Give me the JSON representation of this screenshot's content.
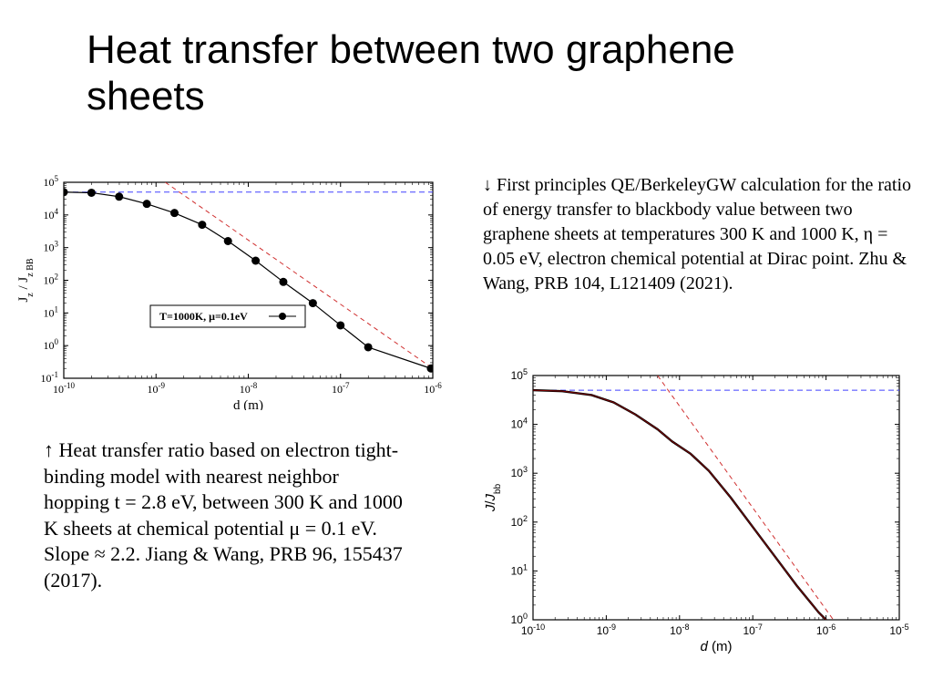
{
  "title": "Heat transfer between two graphene sheets",
  "caption_left": "↑ Heat transfer ratio based on electron tight-binding model with nearest neighbor hopping t = 2.8 eV, between 300 K and 1000 K sheets at chemical potential μ = 0.1 eV. Slope ≈ 2.2. Jiang & Wang, PRB 96, 155437 (2017).",
  "caption_right": "↓  First principles QE/BerkeleyGW calculation for the ratio of energy transfer to blackbody value between two graphene sheets at temperatures 300 K and 1000 K, η = 0.05 eV, electron chemical potential at Dirac point.  Zhu & Wang, PRB 104, L121409 (2021).",
  "chart_left": {
    "type": "line+scatter",
    "xlabel": "d (m)",
    "ylabel": "J_z / J_z BB",
    "xlim_exp": [
      -10,
      -6
    ],
    "ylim_exp": [
      -1,
      5
    ],
    "xtick_exp": [
      -10,
      -9,
      -8,
      -7,
      -6
    ],
    "ytick_exp": [
      -1,
      0,
      1,
      2,
      3,
      4,
      5
    ],
    "background": "#ffffff",
    "axis_color": "#000000",
    "line_color": "#000000",
    "line_width": 1.2,
    "marker": "circle",
    "marker_size": 4.5,
    "marker_fill": "#000000",
    "hline_y_exp": 4.7,
    "hline_color": "#4040ff",
    "hline_dash": "6 4",
    "asymptote_color": "#d03030",
    "asymptote_dash": "5 4",
    "asymptote_p1": {
      "x_exp": -8.9,
      "y_exp": 5.0
    },
    "asymptote_p2": {
      "x_exp": -6.0,
      "y_exp": -0.7
    },
    "legend": {
      "label": "T=1000K, μ=0.1eV",
      "border": "#000000"
    },
    "data": [
      {
        "x_exp": -10.0,
        "y_exp": 4.7
      },
      {
        "x_exp": -9.7,
        "y_exp": 4.68
      },
      {
        "x_exp": -9.4,
        "y_exp": 4.56
      },
      {
        "x_exp": -9.1,
        "y_exp": 4.34
      },
      {
        "x_exp": -8.8,
        "y_exp": 4.06
      },
      {
        "x_exp": -8.5,
        "y_exp": 3.7
      },
      {
        "x_exp": -8.22,
        "y_exp": 3.2
      },
      {
        "x_exp": -7.92,
        "y_exp": 2.6
      },
      {
        "x_exp": -7.62,
        "y_exp": 1.95
      },
      {
        "x_exp": -7.3,
        "y_exp": 1.3
      },
      {
        "x_exp": -7.0,
        "y_exp": 0.62
      },
      {
        "x_exp": -6.7,
        "y_exp": -0.05
      },
      {
        "x_exp": -6.02,
        "y_exp": -0.7
      }
    ],
    "label_fontsize": 15
  },
  "chart_right": {
    "type": "line",
    "xlabel": "d (m)",
    "ylabel": "J/J_bb",
    "xlim_exp": [
      -10,
      -5
    ],
    "ylim_exp": [
      0,
      5
    ],
    "xtick_exp": [
      -10,
      -9,
      -8,
      -7,
      -6,
      -5
    ],
    "ytick_exp": [
      0,
      1,
      2,
      3,
      4,
      5
    ],
    "background": "#ffffff",
    "axis_color": "#000000",
    "line_color": "#000000",
    "line_width": 2.4,
    "line2_color": "#800000",
    "line2_width": 1.0,
    "hline_y_exp": 4.7,
    "hline_color": "#4040ff",
    "hline_dash": "6 4",
    "asymptote_color": "#d03030",
    "asymptote_dash": "5 4",
    "asymptote_p1": {
      "x_exp": -8.3,
      "y_exp": 5.0
    },
    "asymptote_p2": {
      "x_exp": -5.9,
      "y_exp": 0.0
    },
    "data": [
      {
        "x_exp": -10.0,
        "y_exp": 4.7
      },
      {
        "x_exp": -9.6,
        "y_exp": 4.68
      },
      {
        "x_exp": -9.2,
        "y_exp": 4.6
      },
      {
        "x_exp": -8.9,
        "y_exp": 4.45
      },
      {
        "x_exp": -8.6,
        "y_exp": 4.2
      },
      {
        "x_exp": -8.3,
        "y_exp": 3.9
      },
      {
        "x_exp": -8.1,
        "y_exp": 3.65
      },
      {
        "x_exp": -8.0,
        "y_exp": 3.55
      },
      {
        "x_exp": -7.85,
        "y_exp": 3.4
      },
      {
        "x_exp": -7.6,
        "y_exp": 3.05
      },
      {
        "x_exp": -7.3,
        "y_exp": 2.5
      },
      {
        "x_exp": -7.0,
        "y_exp": 1.9
      },
      {
        "x_exp": -6.7,
        "y_exp": 1.3
      },
      {
        "x_exp": -6.4,
        "y_exp": 0.7
      },
      {
        "x_exp": -6.1,
        "y_exp": 0.15
      },
      {
        "x_exp": -6.0,
        "y_exp": 0.0
      }
    ],
    "label_fontsize": 15
  }
}
